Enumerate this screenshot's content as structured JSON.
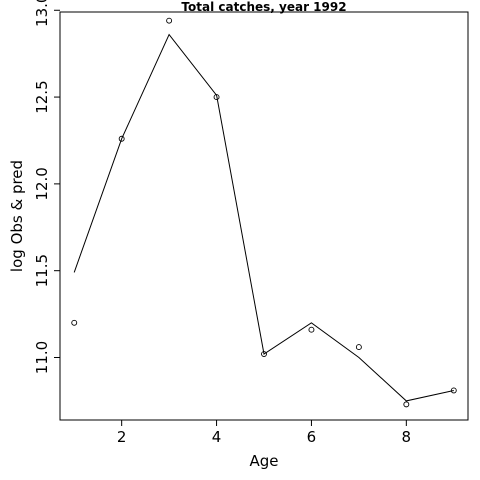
{
  "chart_data": {
    "type": "line",
    "title": "Total catches, year 1992",
    "xlabel": "Age",
    "ylabel": "log Obs & pred",
    "xlim": [
      0.7,
      9.3
    ],
    "ylim": [
      10.64,
      12.99
    ],
    "x_ticks": [
      2,
      4,
      6,
      8
    ],
    "y_ticks": [
      11.0,
      11.5,
      12.0,
      12.5,
      13.0
    ],
    "x_tick_labels": [
      "2",
      "4",
      "6",
      "8"
    ],
    "y_tick_labels": [
      "11.0",
      "11.5",
      "12.0",
      "12.5",
      "13.0"
    ],
    "grid": false,
    "legend": "none",
    "series": [
      {
        "role": "observed",
        "style": "points",
        "x": [
          1,
          2,
          3,
          4,
          5,
          6,
          7,
          8,
          9
        ],
        "y": [
          11.2,
          12.26,
          12.94,
          12.5,
          11.02,
          11.16,
          11.06,
          10.73,
          10.81
        ]
      },
      {
        "role": "predicted",
        "style": "line",
        "x": [
          1,
          2,
          3,
          4,
          5,
          6,
          7,
          8,
          9
        ],
        "y": [
          11.49,
          12.26,
          12.86,
          12.51,
          11.02,
          11.2,
          11.0,
          10.75,
          10.81
        ]
      }
    ],
    "colors": {
      "line": "#000000",
      "points": "#000000",
      "frame": "#000000"
    }
  }
}
